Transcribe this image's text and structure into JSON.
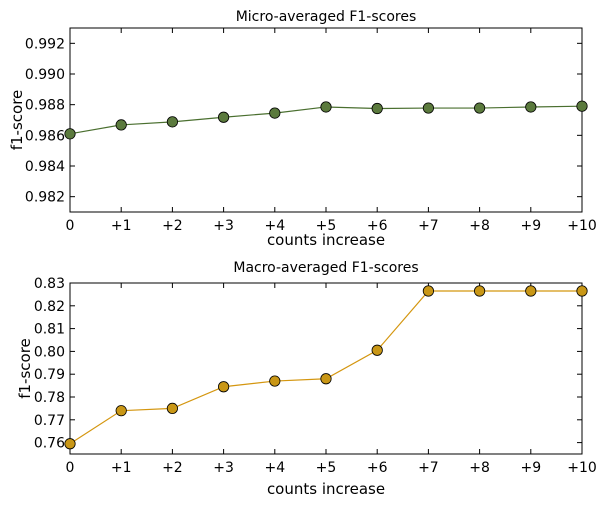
{
  "chart_data": [
    {
      "type": "line",
      "title": "Micro-averaged F1-scores",
      "xlabel": "counts increase",
      "ylabel": "f1-score",
      "categories": [
        "0",
        "+1",
        "+2",
        "+3",
        "+4",
        "+5",
        "+6",
        "+7",
        "+8",
        "+9",
        "+10"
      ],
      "ylim": [
        0.981,
        0.993
      ],
      "yticks": [
        0.982,
        0.984,
        0.986,
        0.988,
        0.99,
        0.992
      ],
      "ytick_labels": [
        "0.982",
        "0.984",
        "0.986",
        "0.988",
        "0.990",
        "0.992"
      ],
      "grid": false,
      "line_color": "#4a6f2f",
      "marker_fill": "#5b7a3d",
      "series": [
        {
          "values": [
            0.9861,
            0.98668,
            0.98688,
            0.98718,
            0.98745,
            0.98785,
            0.98775,
            0.98778,
            0.98778,
            0.98785,
            0.9879
          ]
        }
      ]
    },
    {
      "type": "line",
      "title": "Macro-averaged F1-scores",
      "xlabel": "counts increase",
      "ylabel": "f1-score",
      "categories": [
        "0",
        "+1",
        "+2",
        "+3",
        "+4",
        "+5",
        "+6",
        "+7",
        "+8",
        "+9",
        "+10"
      ],
      "ylim": [
        0.755,
        0.83
      ],
      "yticks": [
        0.76,
        0.77,
        0.78,
        0.79,
        0.8,
        0.81,
        0.82,
        0.83
      ],
      "ytick_labels": [
        "0.76",
        "0.77",
        "0.78",
        "0.79",
        "0.80",
        "0.81",
        "0.82",
        "0.83"
      ],
      "grid": false,
      "line_color": "#d4960f",
      "marker_fill": "#c99716",
      "series": [
        {
          "values": [
            0.7595,
            0.774,
            0.775,
            0.7845,
            0.787,
            0.788,
            0.8005,
            0.8265,
            0.8265,
            0.8265,
            0.8265
          ]
        }
      ]
    }
  ]
}
